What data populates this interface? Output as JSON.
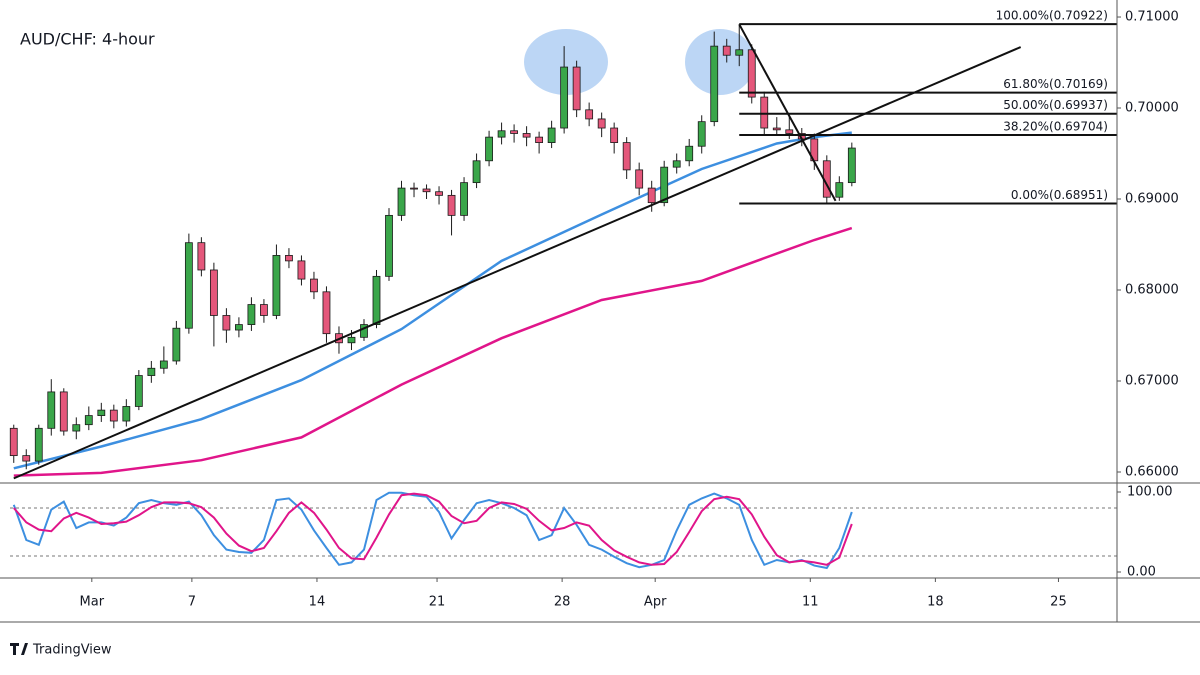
{
  "chart_data": [
    {
      "type": "candlestick",
      "title": "AUD/CHF: 4-hour",
      "up_color": "#3aa64a",
      "down_color": "#e4577b",
      "xlim": [
        -0.3,
        88.2
      ],
      "ylim": [
        0.65879,
        0.71187
      ],
      "yticks": [
        {
          "value": 0.66,
          "label": "0.66000"
        },
        {
          "value": 0.67,
          "label": "0.67000"
        },
        {
          "value": 0.68,
          "label": "0.68000"
        },
        {
          "value": 0.69,
          "label": "0.69000"
        },
        {
          "value": 0.7,
          "label": "0.70000"
        },
        {
          "value": 0.71,
          "label": "0.71000"
        }
      ],
      "candles": [
        [
          0.6648,
          0.6652,
          0.661,
          0.6618
        ],
        [
          0.6618,
          0.6625,
          0.6603,
          0.6612
        ],
        [
          0.6612,
          0.6652,
          0.6608,
          0.6648
        ],
        [
          0.6648,
          0.6702,
          0.664,
          0.6688
        ],
        [
          0.6688,
          0.6692,
          0.664,
          0.6645
        ],
        [
          0.6645,
          0.666,
          0.6636,
          0.6652
        ],
        [
          0.6652,
          0.6672,
          0.6646,
          0.6662
        ],
        [
          0.6662,
          0.6676,
          0.6655,
          0.6668
        ],
        [
          0.6668,
          0.6674,
          0.6648,
          0.6656
        ],
        [
          0.6656,
          0.668,
          0.665,
          0.6672
        ],
        [
          0.6672,
          0.6712,
          0.6668,
          0.6706
        ],
        [
          0.6706,
          0.6722,
          0.6698,
          0.6714
        ],
        [
          0.6714,
          0.6738,
          0.6708,
          0.6722
        ],
        [
          0.6722,
          0.6766,
          0.6718,
          0.6758
        ],
        [
          0.6758,
          0.6862,
          0.6752,
          0.6852
        ],
        [
          0.6852,
          0.6858,
          0.6815,
          0.6822
        ],
        [
          0.6822,
          0.683,
          0.6738,
          0.6772
        ],
        [
          0.6772,
          0.678,
          0.6742,
          0.6756
        ],
        [
          0.6756,
          0.677,
          0.6748,
          0.6762
        ],
        [
          0.6762,
          0.6792,
          0.6755,
          0.6784
        ],
        [
          0.6784,
          0.679,
          0.6764,
          0.6772
        ],
        [
          0.6772,
          0.685,
          0.6768,
          0.6838
        ],
        [
          0.6838,
          0.6846,
          0.6824,
          0.6832
        ],
        [
          0.6832,
          0.6838,
          0.6805,
          0.6812
        ],
        [
          0.6812,
          0.682,
          0.679,
          0.6798
        ],
        [
          0.6798,
          0.6804,
          0.6742,
          0.6752
        ],
        [
          0.6752,
          0.676,
          0.673,
          0.6742
        ],
        [
          0.6742,
          0.6756,
          0.6734,
          0.6748
        ],
        [
          0.6748,
          0.6768,
          0.6744,
          0.6762
        ],
        [
          0.6762,
          0.6822,
          0.6758,
          0.6815
        ],
        [
          0.6815,
          0.689,
          0.681,
          0.6882
        ],
        [
          0.6882,
          0.692,
          0.6876,
          0.6912
        ],
        [
          0.6912,
          0.6918,
          0.6902,
          0.6911
        ],
        [
          0.6911,
          0.6916,
          0.69,
          0.6908
        ],
        [
          0.6908,
          0.6914,
          0.6894,
          0.6904
        ],
        [
          0.6904,
          0.691,
          0.686,
          0.6882
        ],
        [
          0.6882,
          0.6924,
          0.6876,
          0.6918
        ],
        [
          0.6918,
          0.695,
          0.6912,
          0.6942
        ],
        [
          0.6942,
          0.6975,
          0.6936,
          0.6968
        ],
        [
          0.6968,
          0.6984,
          0.696,
          0.6975
        ],
        [
          0.6975,
          0.6982,
          0.6962,
          0.6972
        ],
        [
          0.6972,
          0.698,
          0.6958,
          0.6968
        ],
        [
          0.6968,
          0.6974,
          0.695,
          0.6962
        ],
        [
          0.6962,
          0.6986,
          0.6956,
          0.6978
        ],
        [
          0.6978,
          0.7068,
          0.6972,
          0.7045
        ],
        [
          0.7045,
          0.7052,
          0.699,
          0.6998
        ],
        [
          0.6998,
          0.7006,
          0.698,
          0.6988
        ],
        [
          0.6988,
          0.6995,
          0.6968,
          0.6978
        ],
        [
          0.6978,
          0.6984,
          0.695,
          0.6962
        ],
        [
          0.6962,
          0.6968,
          0.6922,
          0.6932
        ],
        [
          0.6932,
          0.694,
          0.6904,
          0.6912
        ],
        [
          0.6912,
          0.692,
          0.6886,
          0.6896
        ],
        [
          0.6896,
          0.6942,
          0.6892,
          0.6935
        ],
        [
          0.6935,
          0.695,
          0.6928,
          0.6942
        ],
        [
          0.6942,
          0.6966,
          0.6936,
          0.6958
        ],
        [
          0.6958,
          0.6992,
          0.695,
          0.6985
        ],
        [
          0.6985,
          0.7084,
          0.698,
          0.7068
        ],
        [
          0.7068,
          0.7076,
          0.705,
          0.7058
        ],
        [
          0.7058,
          0.7092,
          0.7046,
          0.7064
        ],
        [
          0.7064,
          0.707,
          0.7005,
          0.7012
        ],
        [
          0.7012,
          0.7018,
          0.697,
          0.6978
        ],
        [
          0.6978,
          0.699,
          0.697,
          0.6976
        ],
        [
          0.6976,
          0.6994,
          0.6966,
          0.6972
        ],
        [
          0.6972,
          0.6978,
          0.6958,
          0.6966
        ],
        [
          0.6966,
          0.6972,
          0.6932,
          0.6942
        ],
        [
          0.6942,
          0.6948,
          0.6895,
          0.6902
        ],
        [
          0.6902,
          0.6925,
          0.6898,
          0.6918
        ],
        [
          0.6918,
          0.6962,
          0.6914,
          0.6956
        ]
      ],
      "series": [
        {
          "color": "#3d8fe0",
          "x": [
            0,
            7,
            15,
            23,
            31,
            39,
            47,
            55,
            61,
            64,
            67
          ],
          "values": [
            0.6604,
            0.6628,
            0.6658,
            0.6701,
            0.6757,
            0.6832,
            0.6883,
            0.6933,
            0.6961,
            0.6968,
            0.6973
          ]
        },
        {
          "color": "#e0158a",
          "x": [
            0,
            7,
            15,
            23,
            31,
            39,
            47,
            55,
            61,
            64,
            67
          ],
          "values": [
            0.6596,
            0.6599,
            0.6613,
            0.6638,
            0.6696,
            0.6747,
            0.6789,
            0.681,
            0.684,
            0.6855,
            0.6868
          ]
        }
      ],
      "lines": [
        {
          "color": "#111111",
          "x": [
            0,
            80.5
          ],
          "values": [
            0.6593,
            0.7067
          ]
        },
        {
          "color": "#111111",
          "x": [
            58,
            65.7
          ],
          "values": [
            0.7092,
            0.6898
          ]
        }
      ],
      "fib_start_x": 58,
      "fib_levels": [
        {
          "value": 0.70922,
          "label": "100.00%(0.70922)"
        },
        {
          "value": 0.70169,
          "label": "61.80%(0.70169)"
        },
        {
          "value": 0.69937,
          "label": "50.00%(0.69937)"
        },
        {
          "value": 0.69704,
          "label": "38.20%(0.69704)"
        },
        {
          "value": 0.68951,
          "label": "0.00%(0.68951)"
        }
      ]
    },
    {
      "type": "stochastic",
      "xlim": [
        -0.3,
        88.2
      ],
      "ylim": [
        -7.5,
        111.25
      ],
      "yticks": [
        {
          "value": 0,
          "label": "0.00"
        },
        {
          "value": 100,
          "label": "100.00"
        }
      ],
      "bands": [
        20,
        80
      ],
      "xticks": [
        {
          "value": 6.24,
          "label": "Mar"
        },
        {
          "value": 14.24,
          "label": "7"
        },
        {
          "value": 24.24,
          "label": "14"
        },
        {
          "value": 33.84,
          "label": "21"
        },
        {
          "value": 43.84,
          "label": "28"
        },
        {
          "value": 51.28,
          "label": "Apr"
        },
        {
          "value": 63.68,
          "label": "11"
        },
        {
          "value": 73.68,
          "label": "18"
        },
        {
          "value": 83.52,
          "label": "25"
        }
      ],
      "series": [
        {
          "color": "#3d8fe0",
          "values": [
            84,
            40,
            34,
            78,
            88,
            55,
            62,
            62,
            58,
            68,
            86,
            90,
            86,
            84,
            88,
            71,
            46,
            28,
            25,
            24,
            40,
            90,
            92,
            78,
            52,
            30,
            9,
            12,
            28,
            90,
            99,
            99,
            96,
            94,
            75,
            42,
            65,
            86,
            90,
            86,
            80,
            71,
            40,
            46,
            80,
            59,
            34,
            28,
            19,
            11,
            6,
            9,
            15,
            52,
            84,
            92,
            98,
            92,
            84,
            40,
            9,
            15,
            12,
            15,
            8,
            5,
            30,
            75
          ]
        },
        {
          "color": "#e0158a",
          "values": [
            80,
            62,
            53,
            51,
            67,
            74,
            68,
            60,
            61,
            63,
            71,
            81,
            87,
            87,
            86,
            81,
            68,
            48,
            33,
            26,
            30,
            51,
            74,
            87,
            74,
            53,
            30,
            17,
            16,
            43,
            72,
            96,
            98,
            96,
            88,
            70,
            61,
            64,
            80,
            87,
            85,
            79,
            64,
            52,
            55,
            62,
            58,
            40,
            27,
            19,
            12,
            9,
            10,
            25,
            50,
            76,
            91,
            94,
            91,
            72,
            44,
            21,
            12,
            14,
            12,
            9,
            18,
            60
          ]
        }
      ]
    }
  ],
  "footer": {
    "brand": "TradingView"
  }
}
